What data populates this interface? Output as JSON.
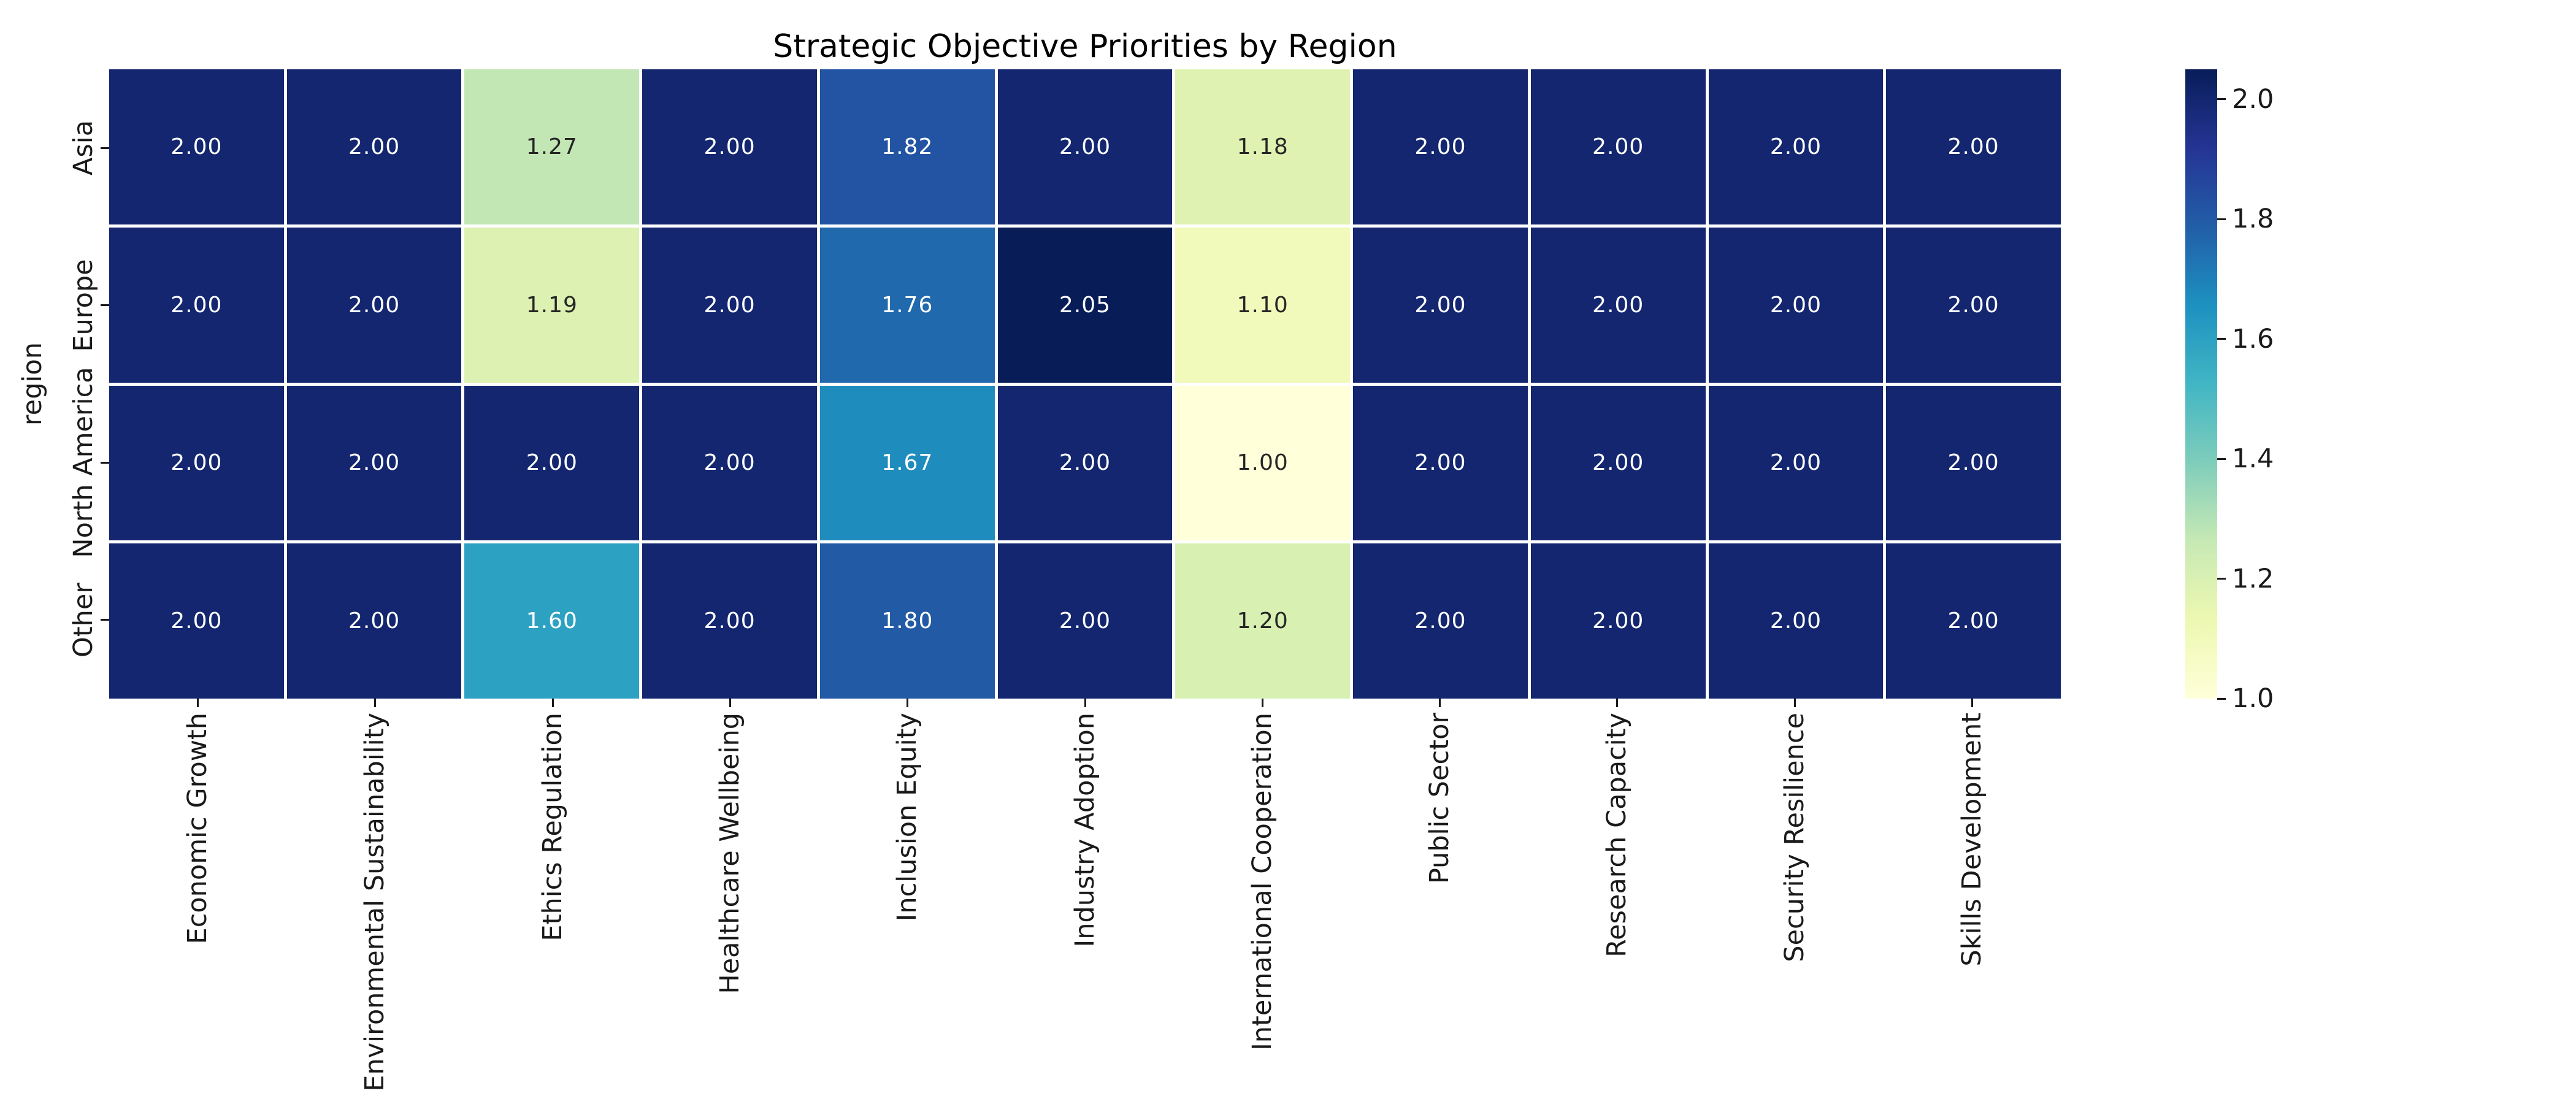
{
  "chart_data": {
    "type": "heatmap",
    "title": "Strategic Objective Priorities by Region",
    "xlabel": "",
    "ylabel": "region",
    "rows": [
      "Asia",
      "Europe",
      "North America",
      "Other"
    ],
    "columns": [
      "Economic Growth",
      "Environmental Sustainability",
      "Ethics Regulation",
      "Healthcare Wellbeing",
      "Inclusion Equity",
      "Industry Adoption",
      "International Cooperation",
      "Public Sector",
      "Research Capacity",
      "Security Resilience",
      "Skills Development"
    ],
    "values": [
      [
        2.0,
        2.0,
        1.27,
        2.0,
        1.82,
        2.0,
        1.18,
        2.0,
        2.0,
        2.0,
        2.0
      ],
      [
        2.0,
        2.0,
        1.19,
        2.0,
        1.76,
        2.05,
        1.1,
        2.0,
        2.0,
        2.0,
        2.0
      ],
      [
        2.0,
        2.0,
        2.0,
        2.0,
        1.67,
        2.0,
        1.0,
        2.0,
        2.0,
        2.0,
        2.0
      ],
      [
        2.0,
        2.0,
        1.6,
        2.0,
        1.8,
        2.0,
        1.2,
        2.0,
        2.0,
        2.0,
        2.0
      ]
    ],
    "cell_colors": [
      [
        "#13266f",
        "#13266f",
        "#c3e7b4",
        "#13266f",
        "#2354a3",
        "#13266f",
        "#dff2b2",
        "#13266f",
        "#13266f",
        "#13266f",
        "#13266f"
      ],
      [
        "#13266f",
        "#13266f",
        "#dcf1b2",
        "#13266f",
        "#2169ad",
        "#081d58",
        "#f1faba",
        "#13266f",
        "#13266f",
        "#13266f",
        "#13266f"
      ],
      [
        "#13266f",
        "#13266f",
        "#13266f",
        "#13266f",
        "#1e8cbd",
        "#13266f",
        "#ffffd9",
        "#13266f",
        "#13266f",
        "#13266f",
        "#13266f"
      ],
      [
        "#13266f",
        "#13266f",
        "#2ca1c2",
        "#13266f",
        "#225aa6",
        "#13266f",
        "#d9f0b3",
        "#13266f",
        "#13266f",
        "#13266f",
        "#13266f"
      ]
    ],
    "annotation_decimals": 2,
    "colormap": "YlGnBu",
    "vmin": 1.0,
    "vmax": 2.05,
    "grid_line_color": "#ffffff",
    "annotation_color_on_light": "#262626",
    "annotation_color_on_dark": "#ffffff",
    "legend_position": "right",
    "colorbar": {
      "tick_labels": [
        "2.0",
        "1.8",
        "1.6",
        "1.4",
        "1.2",
        "1.0"
      ],
      "tick_values": [
        2.0,
        1.8,
        1.6,
        1.4,
        1.2,
        1.0
      ],
      "gradient_stops_top_to_bottom": [
        "#081d58",
        "#253494",
        "#225ea8",
        "#1d91c0",
        "#41b6c4",
        "#7fcdbb",
        "#c7e9b4",
        "#edf8b1",
        "#ffffd9"
      ]
    }
  }
}
